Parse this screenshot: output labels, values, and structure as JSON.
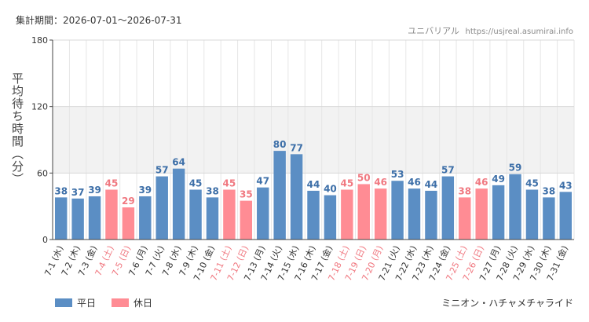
{
  "header": {
    "period_label": "集計期間：2026-07-01〜2026-07-31",
    "source_name": "ユニバリアル",
    "source_url": "https://usjreal.asumirai.info"
  },
  "legend": {
    "weekday_label": "平日",
    "holiday_label": "休日"
  },
  "footer": {
    "attraction_name": "ミニオン・ハチャメチャライド"
  },
  "colors": {
    "weekday": "#5b8ec4",
    "holiday": "#ff8c94",
    "weekday_text": "#3d6fa8",
    "holiday_text": "#f07880",
    "band": "#f2f2f2"
  },
  "chart_data": {
    "type": "bar",
    "ylabel": "平均待ち時間（分）",
    "ylim": [
      0,
      180
    ],
    "yticks": [
      0,
      60,
      120,
      180
    ],
    "shaded_band": [
      60,
      120
    ],
    "grid": true,
    "legend_placement": "bottom-left",
    "categories": [
      "7-1 (水)",
      "7-2 (木)",
      "7-3 (金)",
      "7-4 (土)",
      "7-5 (日)",
      "7-6 (月)",
      "7-7 (火)",
      "7-8 (水)",
      "7-9 (木)",
      "7-10 (金)",
      "7-11 (土)",
      "7-12 (日)",
      "7-13 (月)",
      "7-14 (火)",
      "7-15 (水)",
      "7-16 (木)",
      "7-17 (金)",
      "7-18 (土)",
      "7-19 (日)",
      "7-20 (月)",
      "7-21 (火)",
      "7-22 (水)",
      "7-23 (木)",
      "7-24 (金)",
      "7-25 (土)",
      "7-26 (日)",
      "7-27 (月)",
      "7-28 (火)",
      "7-29 (水)",
      "7-30 (木)",
      "7-31 (金)"
    ],
    "values": [
      38,
      37,
      39,
      45,
      29,
      39,
      57,
      64,
      45,
      38,
      45,
      35,
      47,
      80,
      77,
      44,
      40,
      45,
      50,
      46,
      53,
      46,
      44,
      57,
      38,
      46,
      49,
      59,
      45,
      38,
      43
    ],
    "day_type": [
      "平日",
      "平日",
      "平日",
      "休日",
      "休日",
      "平日",
      "平日",
      "平日",
      "平日",
      "平日",
      "休日",
      "休日",
      "平日",
      "平日",
      "平日",
      "平日",
      "平日",
      "休日",
      "休日",
      "休日",
      "平日",
      "平日",
      "平日",
      "平日",
      "休日",
      "休日",
      "平日",
      "平日",
      "平日",
      "平日",
      "平日"
    ]
  }
}
